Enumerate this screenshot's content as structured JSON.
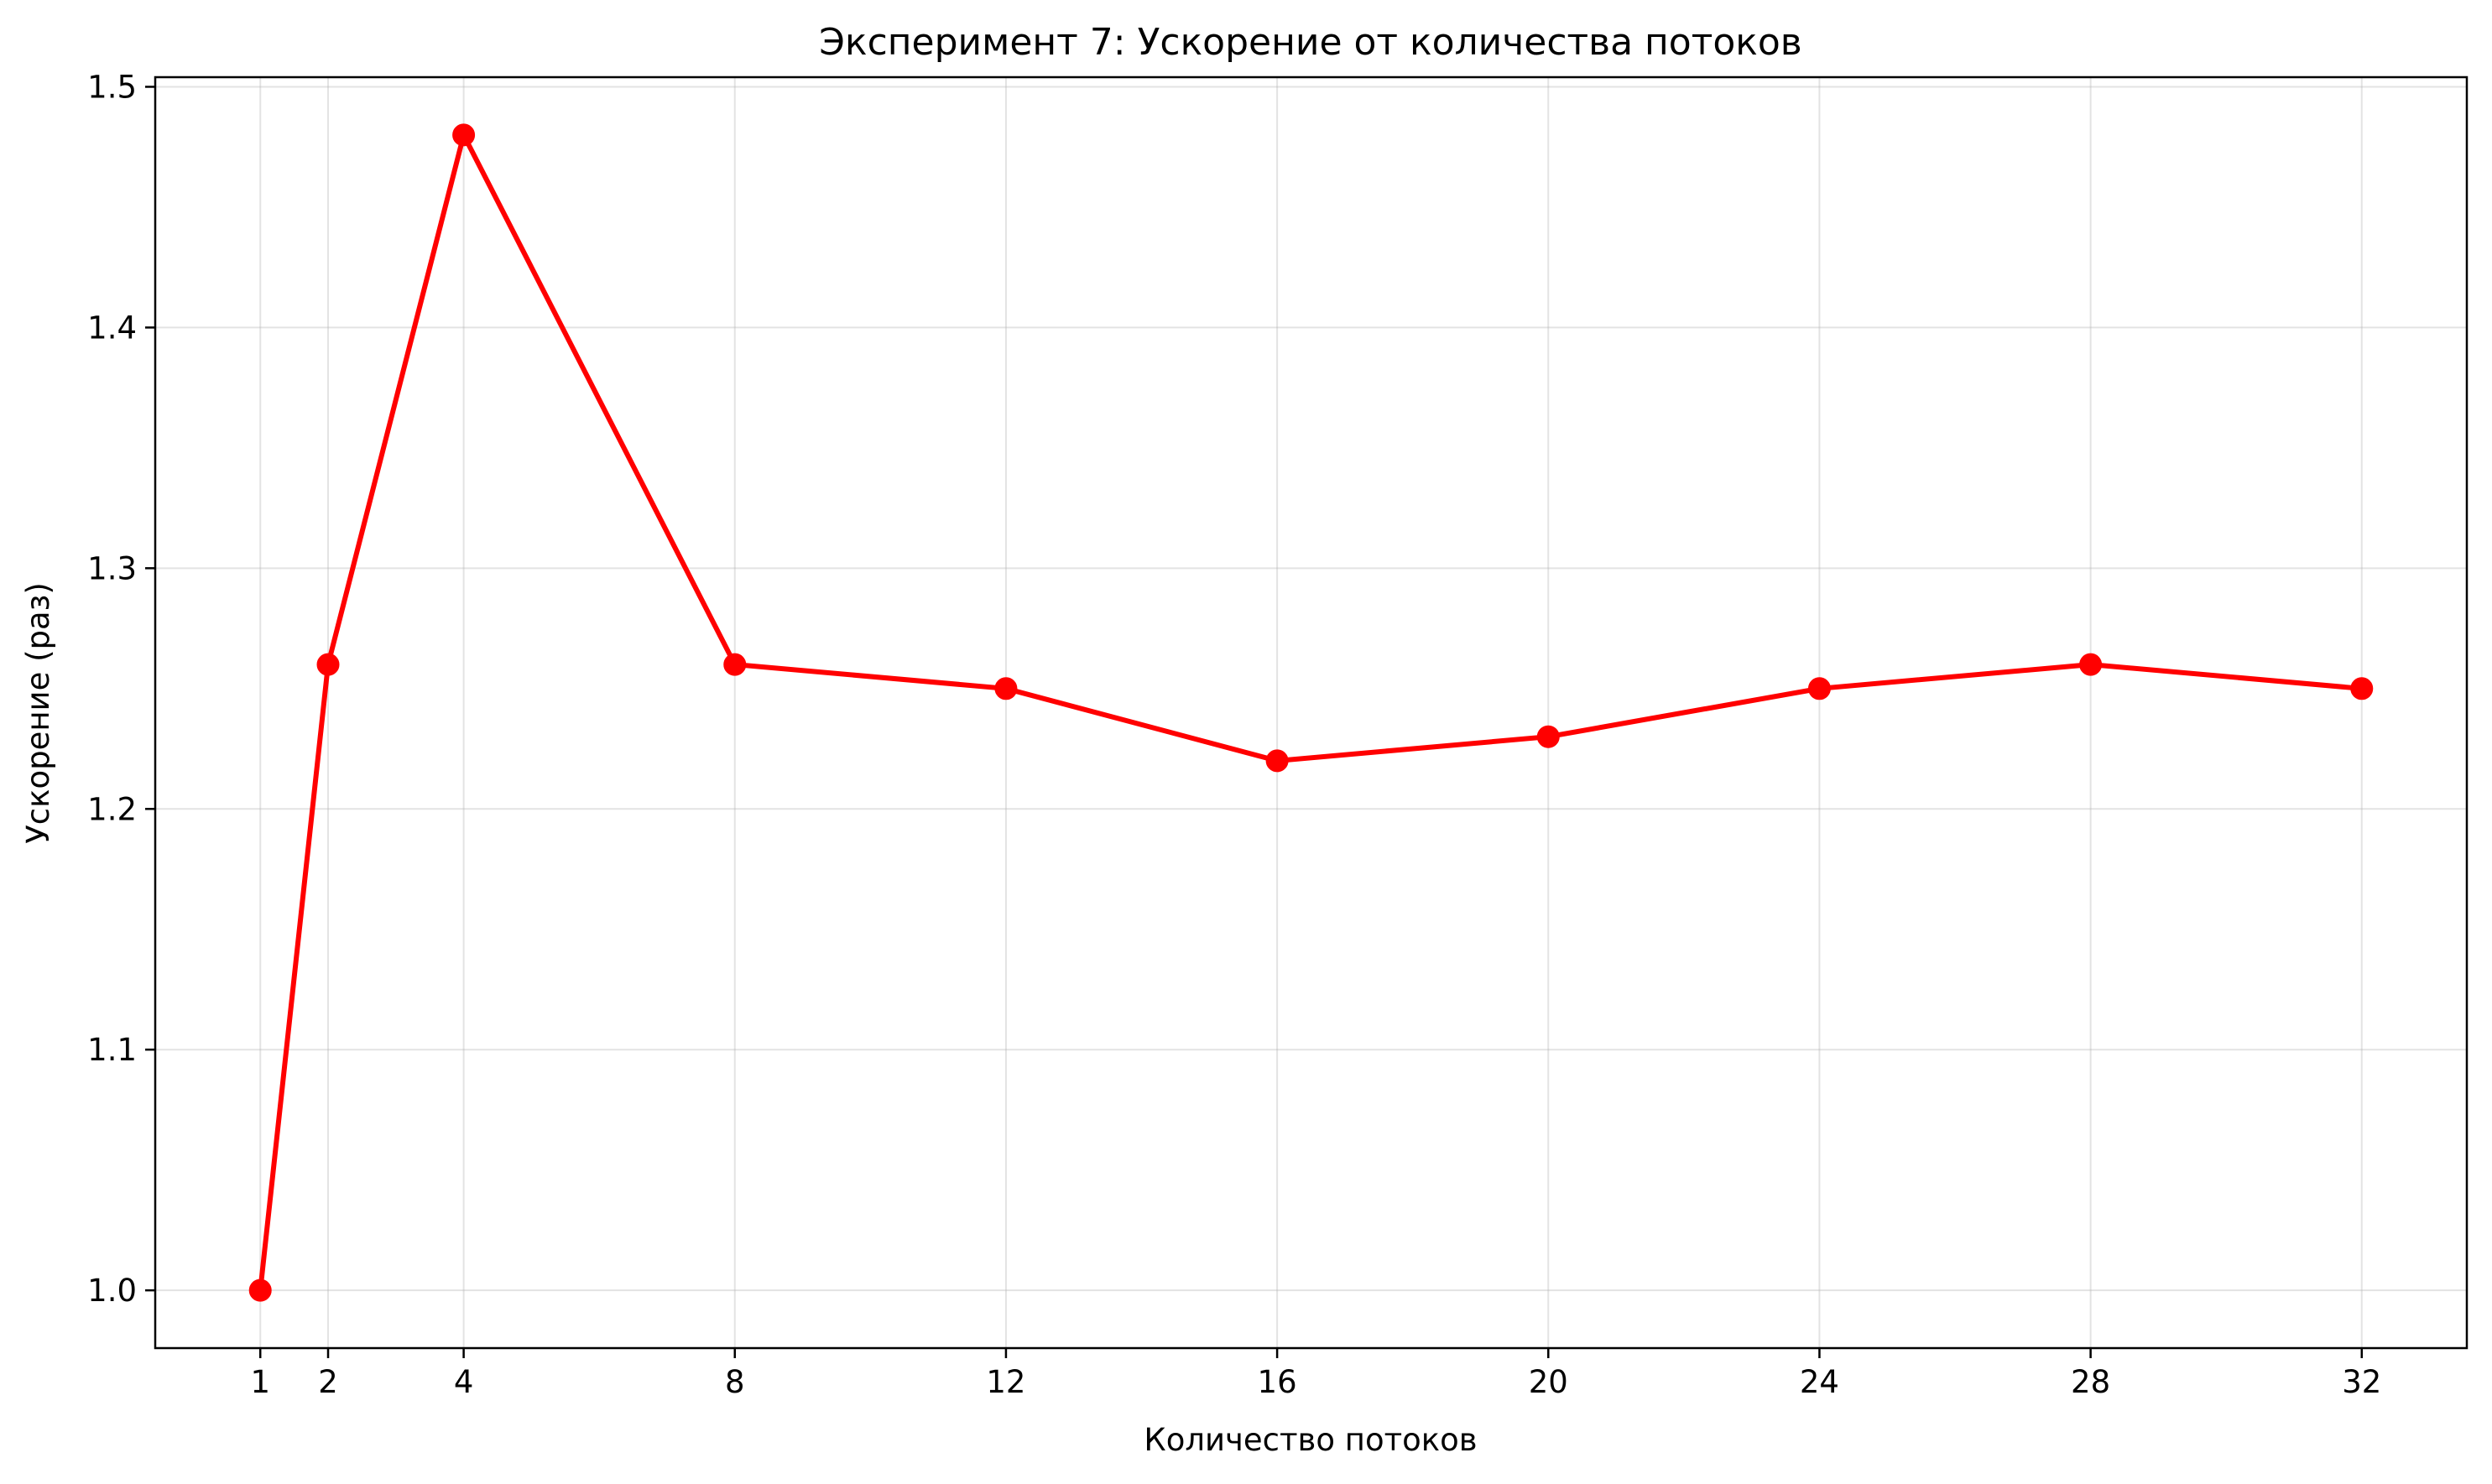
{
  "chart_data": {
    "type": "line",
    "title": "Эксперимент 7: Ускорение от количества потоков",
    "xlabel": "Количество потоков",
    "ylabel": "Ускорение (раз)",
    "x": [
      1,
      2,
      4,
      8,
      12,
      16,
      20,
      24,
      28,
      32
    ],
    "series": [
      {
        "values": [
          1.0,
          1.26,
          1.48,
          1.26,
          1.25,
          1.22,
          1.23,
          1.25,
          1.26,
          1.25
        ],
        "color": "#ff0000",
        "marker": "circle"
      }
    ],
    "x_ticks": [
      "1",
      "2",
      "4",
      "8",
      "12",
      "16",
      "20",
      "24",
      "28",
      "32"
    ],
    "y_ticks": [
      "1.0",
      "1.1",
      "1.2",
      "1.3",
      "1.4",
      "1.5"
    ],
    "xlim": [
      -0.55,
      33.55
    ],
    "ylim": [
      0.976,
      1.504
    ],
    "grid": true,
    "legend": false
  }
}
